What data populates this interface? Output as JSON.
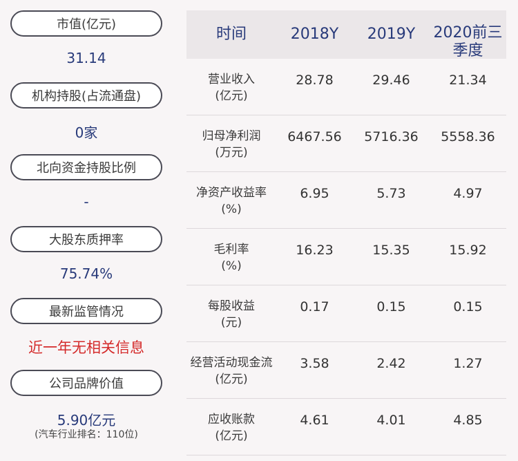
{
  "left": {
    "items": [
      {
        "label": "市值(亿元)",
        "value": "31.14"
      },
      {
        "label": "机构持股(占流通盘)",
        "value": "0家"
      },
      {
        "label": "北向资金持股比例",
        "value": "-"
      },
      {
        "label": "大股东质押率",
        "value": "75.74%"
      },
      {
        "label": "最新监管情况",
        "value": "近一年无相关信息"
      },
      {
        "label": "公司品牌价值",
        "value": "5.90亿元",
        "sub": "(汽车行业排名：110位)"
      }
    ]
  },
  "table": {
    "headers": [
      "时间",
      "2018Y",
      "2019Y",
      "2020前三季度"
    ],
    "rows": [
      {
        "label": [
          "营业收入",
          "(亿元)"
        ],
        "values": [
          "28.78",
          "29.46",
          "21.34"
        ]
      },
      {
        "label": [
          "归母净利润",
          "(万元)"
        ],
        "values": [
          "6467.56",
          "5716.36",
          "5558.36"
        ]
      },
      {
        "label": [
          "净资产收益率",
          "(%)"
        ],
        "values": [
          "6.95",
          "5.73",
          "4.97"
        ]
      },
      {
        "label": [
          "毛利率",
          "(%)"
        ],
        "values": [
          "16.23",
          "15.35",
          "15.92"
        ]
      },
      {
        "label": [
          "每股收益",
          "(元)"
        ],
        "values": [
          "0.17",
          "0.15",
          "0.15"
        ]
      },
      {
        "label": [
          "经营活动现金流",
          "(亿元)"
        ],
        "values": [
          "3.58",
          "2.42",
          "1.27"
        ]
      },
      {
        "label": [
          "应收账款",
          "(亿元)"
        ],
        "values": [
          "4.61",
          "4.01",
          "4.85"
        ]
      }
    ]
  },
  "colors": {
    "accent": "#283a7a",
    "alert": "#d42a2a",
    "header_bg": "#ebe7e9"
  }
}
